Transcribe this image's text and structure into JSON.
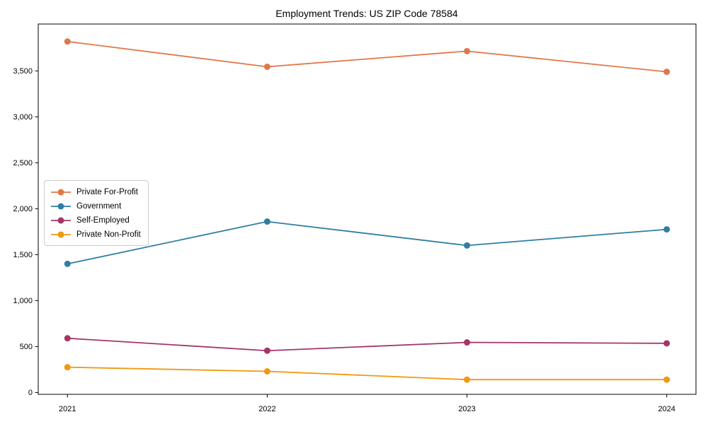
{
  "chart_data": {
    "type": "line",
    "title": "Employment Trends: US ZIP Code 78584",
    "categories": [
      "2021",
      "2022",
      "2023",
      "2024"
    ],
    "series": [
      {
        "name": "Private For-Profit",
        "color": "#E0784A",
        "values": [
          3820,
          3545,
          3715,
          3490
        ]
      },
      {
        "name": "Government",
        "color": "#2E7FA3",
        "values": [
          1400,
          1860,
          1600,
          1775
        ]
      },
      {
        "name": "Self-Employed",
        "color": "#A43569",
        "values": [
          590,
          455,
          545,
          535
        ]
      },
      {
        "name": "Private Non-Profit",
        "color": "#F0990F",
        "values": [
          275,
          230,
          140,
          140
        ]
      }
    ],
    "xlabel": "",
    "ylabel": "",
    "yticks": [
      0,
      500,
      1000,
      1500,
      2000,
      2500,
      3000,
      3500
    ],
    "ytick_labels": [
      "0",
      "500",
      "1,000",
      "1,500",
      "2,000",
      "2,500",
      "3,000",
      "3,500"
    ],
    "ylim": [
      -20,
      4010
    ],
    "grid": false,
    "legend_position": "center-left",
    "marker": "circle",
    "line_width": 1.8,
    "marker_radius": 4.5,
    "axis_color": "#000000",
    "background": "#ffffff"
  }
}
